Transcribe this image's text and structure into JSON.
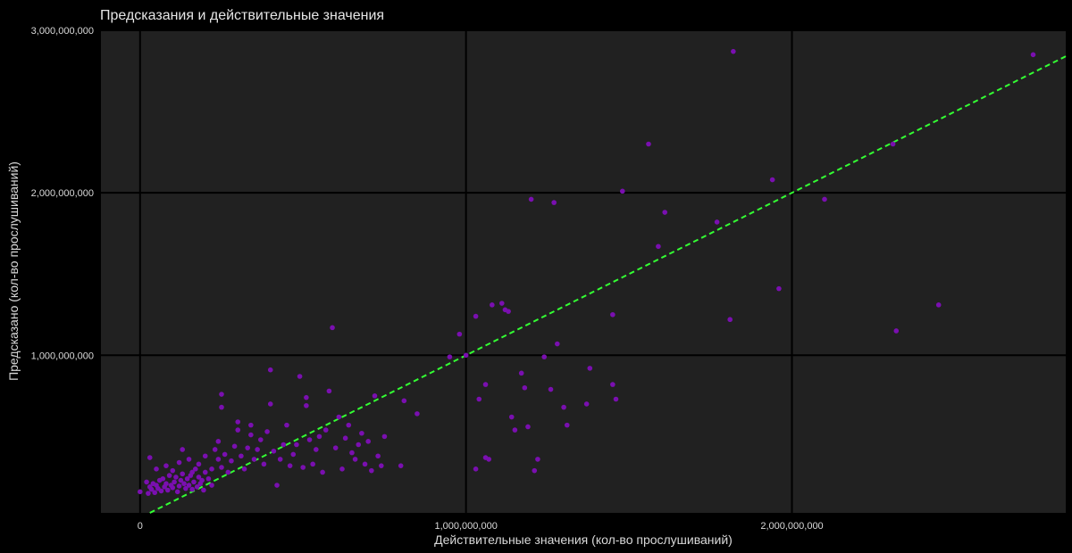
{
  "chart_data": {
    "type": "scatter",
    "title": "Предсказания и действительные значения",
    "xlabel": "Действительные значения (кол-во прослушиваний)",
    "ylabel": "Предсказано (кол-во прослушиваний)",
    "xlim": [
      -120000000,
      2840000000
    ],
    "ylim": [
      30000000,
      3000000000
    ],
    "x_ticks": [
      {
        "value": 0,
        "label": "0"
      },
      {
        "value": 1000000000,
        "label": "1,000,000,000"
      },
      {
        "value": 2000000000,
        "label": "2,000,000,000"
      }
    ],
    "y_ticks": [
      {
        "value": 1000000000,
        "label": "1,000,000,000"
      },
      {
        "value": 2000000000,
        "label": "2,000,000,000"
      },
      {
        "value": 3000000000,
        "label": "3,000,000,000"
      }
    ],
    "grid": true,
    "reference_line": "y = x",
    "colors": {
      "background": "#000000",
      "panel": "#212121",
      "grid": "#000000",
      "points": "#7a0fb0",
      "reference_line": "#33ff33"
    },
    "series": [
      {
        "points": [
          [
            0,
            160000000
          ],
          [
            20000000,
            220000000
          ],
          [
            25000000,
            150000000
          ],
          [
            30000000,
            190000000
          ],
          [
            35000000,
            175000000
          ],
          [
            40000000,
            210000000
          ],
          [
            45000000,
            155000000
          ],
          [
            50000000,
            200000000
          ],
          [
            55000000,
            180000000
          ],
          [
            60000000,
            230000000
          ],
          [
            65000000,
            165000000
          ],
          [
            70000000,
            240000000
          ],
          [
            75000000,
            190000000
          ],
          [
            80000000,
            210000000
          ],
          [
            85000000,
            170000000
          ],
          [
            90000000,
            260000000
          ],
          [
            95000000,
            200000000
          ],
          [
            100000000,
            185000000
          ],
          [
            105000000,
            220000000
          ],
          [
            110000000,
            250000000
          ],
          [
            115000000,
            160000000
          ],
          [
            120000000,
            195000000
          ],
          [
            125000000,
            230000000
          ],
          [
            130000000,
            270000000
          ],
          [
            135000000,
            210000000
          ],
          [
            140000000,
            180000000
          ],
          [
            145000000,
            240000000
          ],
          [
            150000000,
            200000000
          ],
          [
            155000000,
            260000000
          ],
          [
            160000000,
            175000000
          ],
          [
            165000000,
            220000000
          ],
          [
            170000000,
            300000000
          ],
          [
            175000000,
            190000000
          ],
          [
            180000000,
            250000000
          ],
          [
            185000000,
            210000000
          ],
          [
            190000000,
            230000000
          ],
          [
            195000000,
            170000000
          ],
          [
            200000000,
            280000000
          ],
          [
            210000000,
            240000000
          ],
          [
            220000000,
            200000000
          ],
          [
            30000000,
            370000000
          ],
          [
            50000000,
            300000000
          ],
          [
            80000000,
            320000000
          ],
          [
            100000000,
            290000000
          ],
          [
            120000000,
            340000000
          ],
          [
            130000000,
            420000000
          ],
          [
            150000000,
            360000000
          ],
          [
            160000000,
            280000000
          ],
          [
            180000000,
            330000000
          ],
          [
            200000000,
            380000000
          ],
          [
            220000000,
            300000000
          ],
          [
            230000000,
            420000000
          ],
          [
            240000000,
            360000000
          ],
          [
            250000000,
            310000000
          ],
          [
            240000000,
            470000000
          ],
          [
            250000000,
            680000000
          ],
          [
            250000000,
            760000000
          ],
          [
            260000000,
            390000000
          ],
          [
            270000000,
            280000000
          ],
          [
            280000000,
            350000000
          ],
          [
            290000000,
            440000000
          ],
          [
            300000000,
            540000000
          ],
          [
            300000000,
            590000000
          ],
          [
            310000000,
            380000000
          ],
          [
            320000000,
            300000000
          ],
          [
            330000000,
            430000000
          ],
          [
            340000000,
            510000000
          ],
          [
            340000000,
            570000000
          ],
          [
            350000000,
            360000000
          ],
          [
            360000000,
            420000000
          ],
          [
            370000000,
            480000000
          ],
          [
            380000000,
            330000000
          ],
          [
            390000000,
            530000000
          ],
          [
            400000000,
            910000000
          ],
          [
            400000000,
            700000000
          ],
          [
            410000000,
            410000000
          ],
          [
            420000000,
            200000000
          ],
          [
            430000000,
            360000000
          ],
          [
            440000000,
            450000000
          ],
          [
            450000000,
            570000000
          ],
          [
            460000000,
            320000000
          ],
          [
            470000000,
            390000000
          ],
          [
            480000000,
            450000000
          ],
          [
            490000000,
            870000000
          ],
          [
            500000000,
            310000000
          ],
          [
            510000000,
            690000000
          ],
          [
            510000000,
            740000000
          ],
          [
            520000000,
            480000000
          ],
          [
            530000000,
            330000000
          ],
          [
            540000000,
            420000000
          ],
          [
            550000000,
            500000000
          ],
          [
            560000000,
            280000000
          ],
          [
            570000000,
            540000000
          ],
          [
            580000000,
            780000000
          ],
          [
            590000000,
            1170000000
          ],
          [
            600000000,
            430000000
          ],
          [
            610000000,
            620000000
          ],
          [
            620000000,
            300000000
          ],
          [
            630000000,
            490000000
          ],
          [
            640000000,
            570000000
          ],
          [
            650000000,
            400000000
          ],
          [
            660000000,
            360000000
          ],
          [
            670000000,
            450000000
          ],
          [
            680000000,
            520000000
          ],
          [
            690000000,
            330000000
          ],
          [
            700000000,
            470000000
          ],
          [
            710000000,
            290000000
          ],
          [
            720000000,
            750000000
          ],
          [
            730000000,
            380000000
          ],
          [
            740000000,
            320000000
          ],
          [
            750000000,
            500000000
          ],
          [
            800000000,
            320000000
          ],
          [
            810000000,
            720000000
          ],
          [
            850000000,
            640000000
          ],
          [
            1000000000,
            1000000000
          ],
          [
            950000000,
            990000000
          ],
          [
            980000000,
            1130000000
          ],
          [
            1030000000,
            1240000000
          ],
          [
            1030000000,
            300000000
          ],
          [
            1040000000,
            730000000
          ],
          [
            1060000000,
            820000000
          ],
          [
            1060000000,
            370000000
          ],
          [
            1070000000,
            360000000
          ],
          [
            1080000000,
            1310000000
          ],
          [
            1110000000,
            1320000000
          ],
          [
            1120000000,
            1280000000
          ],
          [
            1130000000,
            1270000000
          ],
          [
            1140000000,
            620000000
          ],
          [
            1150000000,
            540000000
          ],
          [
            1170000000,
            890000000
          ],
          [
            1180000000,
            800000000
          ],
          [
            1190000000,
            560000000
          ],
          [
            1200000000,
            1960000000
          ],
          [
            1210000000,
            290000000
          ],
          [
            1220000000,
            360000000
          ],
          [
            1240000000,
            990000000
          ],
          [
            1260000000,
            790000000
          ],
          [
            1270000000,
            1940000000
          ],
          [
            1280000000,
            1070000000
          ],
          [
            1300000000,
            680000000
          ],
          [
            1310000000,
            570000000
          ],
          [
            1370000000,
            700000000
          ],
          [
            1380000000,
            920000000
          ],
          [
            1450000000,
            1250000000
          ],
          [
            1450000000,
            820000000
          ],
          [
            1460000000,
            730000000
          ],
          [
            1480000000,
            2010000000
          ],
          [
            1560000000,
            2300000000
          ],
          [
            1590000000,
            1670000000
          ],
          [
            1610000000,
            1880000000
          ],
          [
            1770000000,
            1820000000
          ],
          [
            1810000000,
            1220000000
          ],
          [
            1820000000,
            2870000000
          ],
          [
            1940000000,
            2080000000
          ],
          [
            1960000000,
            1410000000
          ],
          [
            2100000000,
            1960000000
          ],
          [
            2310000000,
            2300000000
          ],
          [
            2320000000,
            1150000000
          ],
          [
            2450000000,
            1310000000
          ],
          [
            2740000000,
            2850000000
          ]
        ]
      }
    ]
  }
}
